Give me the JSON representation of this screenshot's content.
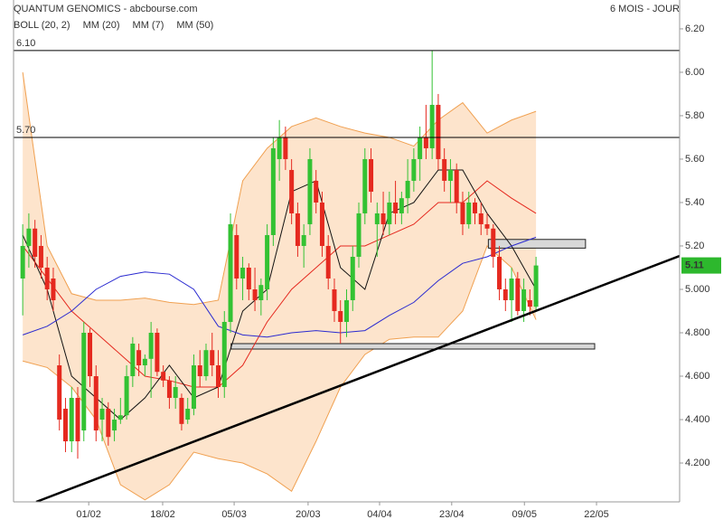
{
  "chart_data": {
    "type": "candlestick",
    "title": "QUANTUM GENOMICS - abcbourse.com",
    "period": "6 MOIS - JOUR",
    "up_color": "#33c233",
    "down_color": "#e5291f",
    "xlim": [
      -1.5,
      107.5
    ],
    "ylim": [
      4.021,
      6.333
    ],
    "xticks": [
      {
        "value": 10.8,
        "label": "01/02"
      },
      {
        "value": 22.9,
        "label": "18/02"
      },
      {
        "value": 34.6,
        "label": "05/03"
      },
      {
        "value": 46.7,
        "label": "20/03"
      },
      {
        "value": 58.4,
        "label": "04/04"
      },
      {
        "value": 70.2,
        "label": "23/04"
      },
      {
        "value": 82.1,
        "label": "09/05"
      },
      {
        "value": 93.9,
        "label": "22/05"
      }
    ],
    "yticks": [
      {
        "value": 6.2,
        "label": "6.20"
      },
      {
        "value": 6.0,
        "label": "6.00"
      },
      {
        "value": 5.8,
        "label": "5.80"
      },
      {
        "value": 5.6,
        "label": "5.60"
      },
      {
        "value": 5.4,
        "label": "5.40"
      },
      {
        "value": 5.2,
        "label": "5.20"
      },
      {
        "value": 5.0,
        "label": "5.000"
      },
      {
        "value": 4.8,
        "label": "4.800"
      },
      {
        "value": 4.6,
        "label": "4.600"
      },
      {
        "value": 4.4,
        "label": "4.400"
      },
      {
        "value": 4.2,
        "label": "4.200"
      }
    ],
    "ohlc": [
      [
        5.05,
        5.3,
        4.88,
        5.2
      ],
      [
        5.2,
        5.35,
        5.1,
        5.28
      ],
      [
        5.28,
        5.32,
        5.1,
        5.15
      ],
      [
        5.2,
        5.25,
        5.05,
        5.1
      ],
      [
        5.1,
        5.15,
        4.95,
        5.0
      ],
      [
        5.05,
        5.1,
        4.9,
        4.95
      ],
      [
        4.65,
        4.7,
        4.35,
        4.4
      ],
      [
        4.45,
        4.5,
        4.25,
        4.3
      ],
      [
        4.3,
        4.55,
        4.25,
        4.5
      ],
      [
        4.5,
        4.55,
        4.22,
        4.3
      ],
      [
        4.35,
        4.85,
        4.3,
        4.8
      ],
      [
        4.8,
        4.82,
        4.55,
        4.6
      ],
      [
        4.6,
        4.65,
        4.3,
        4.35
      ],
      [
        4.4,
        4.5,
        4.3,
        4.45
      ],
      [
        4.45,
        4.48,
        4.28,
        4.32
      ],
      [
        4.35,
        4.45,
        4.3,
        4.4
      ],
      [
        4.4,
        4.5,
        4.38,
        4.42
      ],
      [
        4.42,
        4.65,
        4.4,
        4.6
      ],
      [
        4.6,
        4.78,
        4.55,
        4.75
      ],
      [
        4.72,
        4.75,
        4.6,
        4.65
      ],
      [
        4.65,
        4.7,
        4.6,
        4.68
      ],
      [
        4.68,
        4.85,
        4.5,
        4.8
      ],
      [
        4.8,
        4.82,
        4.6,
        4.62
      ],
      [
        4.62,
        4.65,
        4.55,
        4.58
      ],
      [
        4.58,
        4.6,
        4.45,
        4.5
      ],
      [
        4.5,
        4.6,
        4.45,
        4.55
      ],
      [
        4.5,
        4.52,
        4.35,
        4.38
      ],
      [
        4.4,
        4.5,
        4.38,
        4.45
      ],
      [
        4.45,
        4.7,
        4.42,
        4.65
      ],
      [
        4.65,
        4.72,
        4.55,
        4.6
      ],
      [
        4.6,
        4.75,
        4.58,
        4.72
      ],
      [
        4.72,
        4.8,
        4.6,
        4.65
      ],
      [
        4.65,
        4.72,
        4.5,
        4.55
      ],
      [
        4.55,
        4.9,
        4.5,
        4.85
      ],
      [
        4.85,
        5.35,
        4.8,
        5.3
      ],
      [
        5.25,
        5.3,
        5.0,
        5.05
      ],
      [
        5.05,
        5.15,
        4.95,
        5.1
      ],
      [
        5.1,
        5.12,
        4.95,
        5.0
      ],
      [
        5.0,
        5.1,
        4.9,
        4.95
      ],
      [
        4.95,
        5.05,
        4.88,
        5.02
      ],
      [
        5.0,
        5.3,
        4.95,
        5.25
      ],
      [
        5.25,
        5.7,
        5.2,
        5.65
      ],
      [
        5.6,
        5.78,
        5.5,
        5.7
      ],
      [
        5.7,
        5.75,
        5.55,
        5.6
      ],
      [
        5.55,
        5.6,
        5.3,
        5.35
      ],
      [
        5.35,
        5.4,
        5.15,
        5.2
      ],
      [
        5.2,
        5.3,
        5.1,
        5.25
      ],
      [
        5.3,
        5.65,
        5.25,
        5.6
      ],
      [
        5.5,
        5.55,
        5.35,
        5.4
      ],
      [
        5.4,
        5.45,
        5.15,
        5.2
      ],
      [
        5.2,
        5.25,
        5.0,
        5.05
      ],
      [
        5.0,
        5.05,
        4.85,
        4.9
      ],
      [
        4.9,
        4.95,
        4.75,
        4.85
      ],
      [
        4.85,
        5.0,
        4.78,
        4.95
      ],
      [
        4.95,
        5.2,
        4.9,
        5.15
      ],
      [
        5.15,
        5.4,
        5.1,
        5.35
      ],
      [
        5.35,
        5.65,
        5.3,
        5.6
      ],
      [
        5.6,
        5.65,
        5.4,
        5.45
      ],
      [
        5.3,
        5.4,
        5.15,
        5.35
      ],
      [
        5.35,
        5.45,
        5.25,
        5.3
      ],
      [
        5.3,
        5.45,
        5.25,
        5.4
      ],
      [
        5.4,
        5.5,
        5.3,
        5.35
      ],
      [
        5.35,
        5.45,
        5.3,
        5.42
      ],
      [
        5.42,
        5.6,
        5.35,
        5.5
      ],
      [
        5.5,
        5.65,
        5.45,
        5.6
      ],
      [
        5.6,
        5.75,
        5.5,
        5.7
      ],
      [
        5.7,
        5.85,
        5.6,
        5.65
      ],
      [
        5.65,
        6.1,
        5.6,
        5.85
      ],
      [
        5.85,
        5.9,
        5.55,
        5.6
      ],
      [
        5.6,
        5.65,
        5.45,
        5.5
      ],
      [
        5.5,
        5.6,
        5.4,
        5.55
      ],
      [
        5.55,
        5.58,
        5.35,
        5.4
      ],
      [
        5.4,
        5.45,
        5.25,
        5.3
      ],
      [
        5.3,
        5.45,
        5.28,
        5.4
      ],
      [
        5.4,
        5.42,
        5.3,
        5.35
      ],
      [
        5.35,
        5.4,
        5.25,
        5.3
      ],
      [
        5.3,
        5.35,
        5.25,
        5.28
      ],
      [
        5.28,
        5.3,
        5.1,
        5.15
      ],
      [
        5.15,
        5.2,
        4.95,
        5.0
      ],
      [
        5.0,
        5.05,
        4.9,
        4.95
      ],
      [
        4.95,
        5.1,
        4.85,
        5.05
      ],
      [
        5.05,
        5.08,
        4.88,
        4.9
      ],
      [
        4.9,
        5.05,
        4.85,
        5.0
      ],
      [
        4.95,
        5.0,
        4.88,
        4.92
      ],
      [
        4.92,
        5.15,
        4.9,
        5.11
      ]
    ],
    "line_x": [
      0,
      4,
      8,
      12,
      16,
      20,
      24,
      28,
      32,
      36,
      40,
      44,
      48,
      52,
      56,
      60,
      64,
      68,
      72,
      76,
      80,
      84
    ],
    "band": {
      "name": "BOLL (20, 2)",
      "color": "#f0a050",
      "upper": [
        6.0,
        5.2,
        4.98,
        4.95,
        4.95,
        4.96,
        4.94,
        4.93,
        4.95,
        5.5,
        5.65,
        5.75,
        5.79,
        5.75,
        5.72,
        5.7,
        5.66,
        5.78,
        5.86,
        5.72,
        5.78,
        5.82
      ],
      "lower": [
        4.67,
        4.64,
        4.55,
        4.4,
        4.1,
        4.03,
        4.1,
        4.25,
        4.22,
        4.2,
        4.15,
        4.07,
        4.3,
        4.55,
        4.7,
        4.77,
        4.78,
        4.78,
        4.9,
        5.2,
        5.1,
        4.86
      ]
    },
    "series": [
      {
        "name": "MM (20)",
        "color": "#e5291f",
        "values": [
          5.2,
          5.05,
          4.9,
          4.8,
          4.7,
          4.6,
          4.58,
          4.55,
          4.55,
          4.65,
          4.85,
          5.0,
          5.1,
          5.2,
          5.2,
          5.25,
          5.3,
          5.4,
          5.4,
          5.5,
          5.42,
          5.35
        ]
      },
      {
        "name": "MM (7)",
        "color": "#111111",
        "values": [
          5.25,
          5.0,
          4.6,
          4.5,
          4.4,
          4.5,
          4.65,
          4.5,
          4.55,
          4.9,
          5.0,
          5.45,
          5.5,
          5.1,
          5.0,
          5.35,
          5.4,
          5.55,
          5.55,
          5.35,
          5.2,
          5.0
        ]
      },
      {
        "name": "MM (50)",
        "color": "#2a2ad0",
        "values": [
          4.79,
          4.83,
          4.9,
          5.0,
          5.06,
          5.08,
          5.07,
          5.0,
          4.83,
          4.79,
          4.78,
          4.8,
          4.81,
          4.8,
          4.81,
          4.88,
          4.94,
          5.04,
          5.12,
          5.15,
          5.2,
          5.24
        ]
      }
    ],
    "levels": [
      {
        "value": 6.1,
        "label": "6.10"
      },
      {
        "value": 5.7,
        "label": "5.70"
      }
    ],
    "trendline": {
      "x": [
        2.2,
        107.5
      ],
      "y": [
        4.021,
        5.154
      ]
    },
    "zones": [
      {
        "x": [
          76.2,
          92.1
        ],
        "y": [
          5.19,
          5.23
        ]
      },
      {
        "x": [
          34.1,
          93.6
        ],
        "y": [
          4.725,
          4.75
        ]
      }
    ],
    "last_price": 5.11,
    "last_color": "#2db82d"
  }
}
